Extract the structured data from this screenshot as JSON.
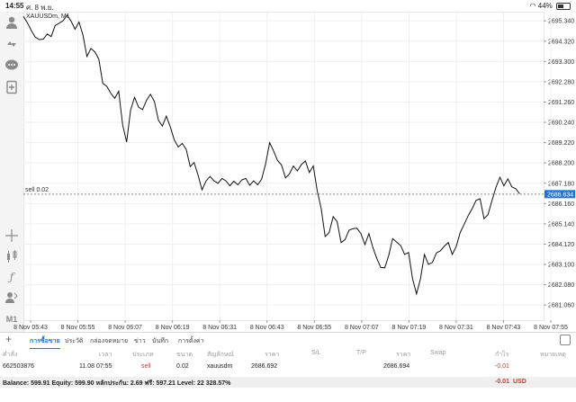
{
  "status_bar": {
    "time": "14:55",
    "date": "ศ. 8 พ.ย.",
    "battery": "44%"
  },
  "chart_header": {
    "symbol": "XAUUSDm, M1"
  },
  "timeframe": "M1",
  "order_line": {
    "label": "sell 0.02",
    "price_tag": "2686.634",
    "price": 2686.634
  },
  "colors": {
    "accent": "#1d73d8",
    "loss": "#d8352b",
    "price_tag_bg": "#1d73d8"
  },
  "chart_data": {
    "type": "line",
    "y_ticks": [
      "2695.340",
      "2694.320",
      "2693.300",
      "2692.280",
      "2691.260",
      "2690.240",
      "2689.220",
      "2688.200",
      "2687.180",
      "2686.160",
      "2685.140",
      "2684.120",
      "2683.100",
      "2682.080",
      "2681.060"
    ],
    "x_ticks": [
      "8 Nov 05:43",
      "8 Nov 05:55",
      "8 Nov 06:07",
      "8 Nov 06:19",
      "8 Nov 06:31",
      "8 Nov 06:43",
      "8 Nov 06:55",
      "8 Nov 07:07",
      "8 Nov 07:19",
      "8 Nov 07:31",
      "8 Nov 07:43",
      "8 Nov 07:55"
    ],
    "ylim": [
      2680.3,
      2695.8
    ],
    "x_range_minutes": [
      0,
      131
    ],
    "grid": true,
    "values": [
      [
        0,
        2695.56
      ],
      [
        1,
        2695.25
      ],
      [
        2,
        2694.85
      ],
      [
        3,
        2694.52
      ],
      [
        4,
        2694.4
      ],
      [
        5,
        2694.42
      ],
      [
        6,
        2694.68
      ],
      [
        7,
        2694.55
      ],
      [
        8,
        2695.1
      ],
      [
        9,
        2695.22
      ],
      [
        10,
        2695.35
      ],
      [
        11,
        2695.62
      ],
      [
        12,
        2695.33
      ],
      [
        13,
        2694.92
      ],
      [
        14,
        2695.28
      ],
      [
        15,
        2694.62
      ],
      [
        16,
        2693.55
      ],
      [
        17,
        2693.95
      ],
      [
        18,
        2693.78
      ],
      [
        19,
        2693.42
      ],
      [
        20,
        2692.2
      ],
      [
        21,
        2692.05
      ],
      [
        22,
        2691.7
      ],
      [
        23,
        2691.45
      ],
      [
        24,
        2691.8
      ],
      [
        25,
        2690.1
      ],
      [
        26,
        2689.25
      ],
      [
        27,
        2690.85
      ],
      [
        28,
        2691.5
      ],
      [
        29,
        2691.0
      ],
      [
        30,
        2690.88
      ],
      [
        31,
        2691.35
      ],
      [
        32,
        2691.65
      ],
      [
        33,
        2691.28
      ],
      [
        34,
        2690.35
      ],
      [
        35,
        2690.05
      ],
      [
        36,
        2690.55
      ],
      [
        37,
        2690.0
      ],
      [
        38,
        2689.35
      ],
      [
        39,
        2689.0
      ],
      [
        40,
        2689.18
      ],
      [
        41,
        2688.88
      ],
      [
        42,
        2688.02
      ],
      [
        43,
        2688.22
      ],
      [
        44,
        2687.58
      ],
      [
        45,
        2686.85
      ],
      [
        46,
        2687.3
      ],
      [
        47,
        2687.52
      ],
      [
        48,
        2687.3
      ],
      [
        49,
        2687.18
      ],
      [
        50,
        2687.42
      ],
      [
        51,
        2687.3
      ],
      [
        52,
        2687.05
      ],
      [
        53,
        2687.28
      ],
      [
        54,
        2687.1
      ],
      [
        55,
        2687.35
      ],
      [
        56,
        2687.42
      ],
      [
        57,
        2687.08
      ],
      [
        58,
        2687.3
      ],
      [
        59,
        2687.1
      ],
      [
        60,
        2687.38
      ],
      [
        61,
        2688.15
      ],
      [
        62,
        2689.22
      ],
      [
        63,
        2688.8
      ],
      [
        64,
        2688.32
      ],
      [
        65,
        2688.1
      ],
      [
        66,
        2687.45
      ],
      [
        67,
        2687.65
      ],
      [
        68,
        2688.05
      ],
      [
        69,
        2687.8
      ],
      [
        70,
        2688.12
      ],
      [
        71,
        2688.3
      ],
      [
        72,
        2687.72
      ],
      [
        73,
        2688.05
      ],
      [
        74,
        2686.8
      ],
      [
        75,
        2685.9
      ],
      [
        76,
        2684.5
      ],
      [
        77,
        2684.7
      ],
      [
        78,
        2685.5
      ],
      [
        79,
        2685.25
      ],
      [
        80,
        2684.2
      ],
      [
        81,
        2684.35
      ],
      [
        82,
        2684.82
      ],
      [
        83,
        2684.9
      ],
      [
        84,
        2684.92
      ],
      [
        85,
        2684.65
      ],
      [
        86,
        2684.1
      ],
      [
        87,
        2684.65
      ],
      [
        88,
        2683.95
      ],
      [
        89,
        2683.4
      ],
      [
        90,
        2682.95
      ],
      [
        91,
        2682.93
      ],
      [
        92,
        2683.55
      ],
      [
        93,
        2684.4
      ],
      [
        94,
        2684.22
      ],
      [
        95,
        2684.05
      ],
      [
        96,
        2683.6
      ],
      [
        97,
        2683.7
      ],
      [
        98,
        2682.38
      ],
      [
        99,
        2681.62
      ],
      [
        100,
        2682.38
      ],
      [
        101,
        2683.6
      ],
      [
        102,
        2683.1
      ],
      [
        103,
        2683.2
      ],
      [
        104,
        2683.68
      ],
      [
        105,
        2683.78
      ],
      [
        106,
        2684.02
      ],
      [
        107,
        2684.2
      ],
      [
        108,
        2683.6
      ],
      [
        109,
        2684.0
      ],
      [
        110,
        2684.7
      ],
      [
        111,
        2685.12
      ],
      [
        112,
        2685.55
      ],
      [
        113,
        2685.9
      ],
      [
        114,
        2686.32
      ],
      [
        115,
        2686.4
      ],
      [
        116,
        2685.4
      ],
      [
        117,
        2685.6
      ],
      [
        118,
        2686.3
      ],
      [
        119,
        2686.98
      ],
      [
        120,
        2687.48
      ],
      [
        121,
        2687.05
      ],
      [
        122,
        2687.4
      ],
      [
        123,
        2687.0
      ],
      [
        124,
        2686.9
      ],
      [
        125,
        2686.65
      ]
    ]
  },
  "tabs": {
    "items": [
      "การซื้อขาย",
      "ประวัติ",
      "กล่องจดหมาย",
      "ข่าว",
      "บันทึก",
      "การตั้งค่า"
    ]
  },
  "table": {
    "headers": [
      "คำสั่ง",
      "เวลา",
      "ประเภท",
      "ขนาด",
      "สัญลักษณ์",
      "ราคา",
      "S/L",
      "T/P",
      "ราคา",
      "Swap",
      "กำไร",
      "หมายเหตุ"
    ],
    "row": {
      "ticket": "662503876",
      "time": "11.08 07:55",
      "type": "sell",
      "size": "0.02",
      "symbol": "xauusdm",
      "open_price": "2686.692",
      "sl": "",
      "tp": "",
      "current_price": "2686.694",
      "swap": "",
      "profit": "-0.01",
      "comment": ""
    }
  },
  "account": {
    "summary": "Balance: 599.91 Equity: 599.90 หลักประกัน: 2.69 ฟรี: 597.21 Level: 22 328.57%",
    "profit": "-0.01",
    "currency": "USD"
  }
}
